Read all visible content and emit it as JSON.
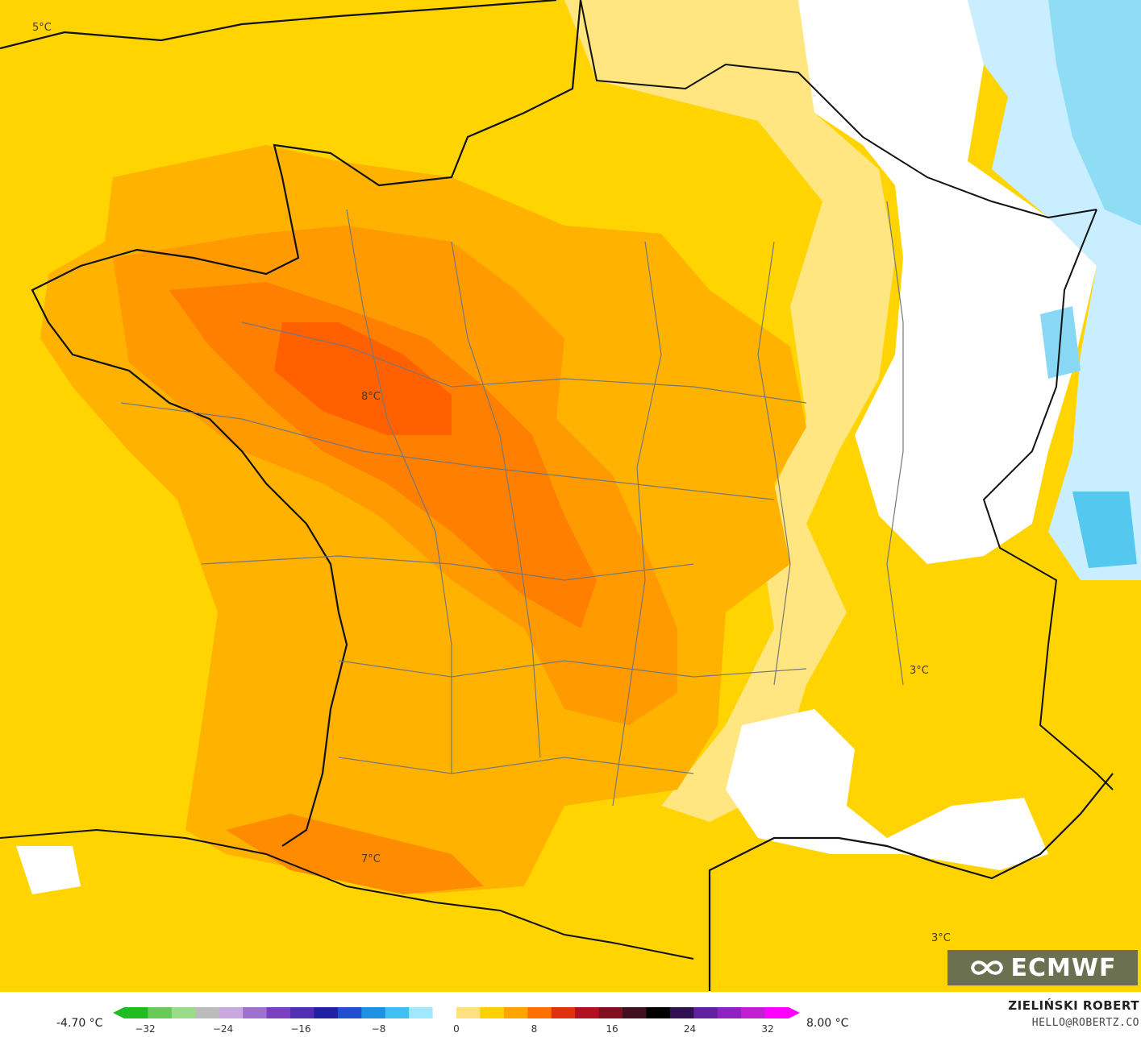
{
  "map": {
    "labels": [
      "5°C",
      "8°C",
      "7°C",
      "3°C",
      "3°C"
    ]
  },
  "logo": {
    "text": "ECMWF",
    "icon": "ecmwf-logo-icon"
  },
  "legend": {
    "min_label": "-4.70 °C",
    "max_label": "8.00 °C",
    "ticks": [
      "−32",
      "−24",
      "−16",
      "−8",
      "0",
      "8",
      "16",
      "24",
      "32"
    ],
    "colors": [
      "#22bb22",
      "#66cc55",
      "#99dd88",
      "#bbbbbb",
      "#c9a8e0",
      "#a070d0",
      "#7a40c0",
      "#5030b0",
      "#2020a0",
      "#2050d0",
      "#2090e0",
      "#40c0f0",
      "#a0e8ff",
      "#ffffff",
      "#ffe080",
      "#ffd000",
      "#ffa500",
      "#ff7000",
      "#e03010",
      "#b01020",
      "#801020",
      "#401020",
      "#000000",
      "#301050",
      "#6020a0",
      "#9020c0",
      "#c020d0",
      "#ff00ff"
    ]
  },
  "credits": {
    "author": "ZIELIŃSKI ROBERT",
    "email": "HELLO@ROBERTZ.CO"
  }
}
